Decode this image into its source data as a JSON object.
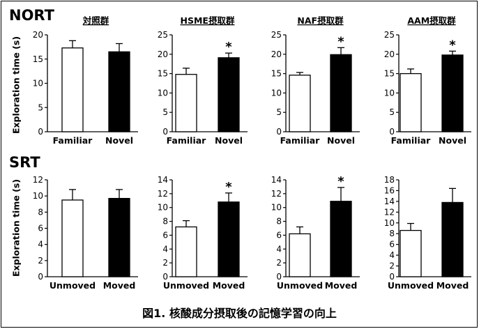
{
  "sections": {
    "nort": "NORT",
    "srt": "SRT"
  },
  "ylabel": "Exploration time (s)",
  "caption": "図1. 核酸成分摂取後の記憶学習の向上",
  "colors": {
    "control_bar": "#ffffff",
    "treated_bar": "#000000",
    "axis": "#000000"
  },
  "chart_data": [
    {
      "type": "bar",
      "title": "対照群",
      "categories": [
        "Familiar",
        "Novel"
      ],
      "values": [
        17.3,
        16.5
      ],
      "errors": [
        1.5,
        1.7
      ],
      "significance": [
        "",
        ""
      ],
      "ylim": [
        0,
        20
      ],
      "yticks": [
        0,
        5,
        10,
        15,
        20
      ],
      "ylabel": "Exploration time (s)"
    },
    {
      "type": "bar",
      "title": "HSME摂取群",
      "categories": [
        "Familiar",
        "Novel"
      ],
      "values": [
        14.8,
        19.1
      ],
      "errors": [
        1.6,
        1.2
      ],
      "significance": [
        "",
        "*"
      ],
      "ylim": [
        0,
        25
      ],
      "yticks": [
        0,
        5,
        10,
        15,
        20,
        25
      ],
      "ylabel": ""
    },
    {
      "type": "bar",
      "title": "NAF摂取群",
      "categories": [
        "Familiar",
        "Novel"
      ],
      "values": [
        14.6,
        19.9
      ],
      "errors": [
        0.7,
        1.8
      ],
      "significance": [
        "",
        "*"
      ],
      "ylim": [
        0,
        25
      ],
      "yticks": [
        0,
        5,
        10,
        15,
        20,
        25
      ],
      "ylabel": ""
    },
    {
      "type": "bar",
      "title": "AAM摂取群",
      "categories": [
        "Familiar",
        "Novel"
      ],
      "values": [
        15.0,
        19.8
      ],
      "errors": [
        1.2,
        1.0
      ],
      "significance": [
        "",
        "*"
      ],
      "ylim": [
        0,
        25
      ],
      "yticks": [
        0,
        5,
        10,
        15,
        20,
        25
      ],
      "ylabel": ""
    },
    {
      "type": "bar",
      "title": "",
      "categories": [
        "Unmoved",
        "Moved"
      ],
      "values": [
        9.5,
        9.7
      ],
      "errors": [
        1.3,
        1.1
      ],
      "significance": [
        "",
        ""
      ],
      "ylim": [
        0,
        12
      ],
      "yticks": [
        0,
        2,
        4,
        6,
        8,
        10,
        12
      ],
      "ylabel": "Exploration time (s)"
    },
    {
      "type": "bar",
      "title": "",
      "categories": [
        "Unmoved",
        "Moved"
      ],
      "values": [
        7.2,
        10.8
      ],
      "errors": [
        0.9,
        1.3
      ],
      "significance": [
        "",
        "*"
      ],
      "ylim": [
        0,
        14
      ],
      "yticks": [
        0,
        2,
        4,
        6,
        8,
        10,
        12,
        14
      ],
      "ylabel": ""
    },
    {
      "type": "bar",
      "title": "",
      "categories": [
        "Unmoved",
        "Moved"
      ],
      "values": [
        6.2,
        10.9
      ],
      "errors": [
        1.0,
        2.0
      ],
      "significance": [
        "",
        "*"
      ],
      "ylim": [
        0,
        14
      ],
      "yticks": [
        0,
        2,
        4,
        6,
        8,
        10,
        12,
        14
      ],
      "ylabel": ""
    },
    {
      "type": "bar",
      "title": "",
      "categories": [
        "Unmoved",
        "Moved"
      ],
      "values": [
        8.6,
        13.8
      ],
      "errors": [
        1.3,
        2.6
      ],
      "significance": [
        "",
        ""
      ],
      "ylim": [
        0,
        18
      ],
      "yticks": [
        0,
        2,
        4,
        6,
        8,
        10,
        12,
        14,
        16,
        18
      ],
      "ylabel": ""
    }
  ]
}
